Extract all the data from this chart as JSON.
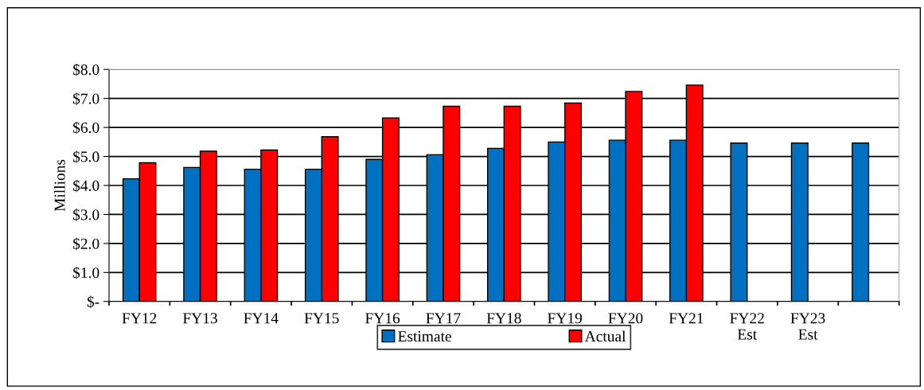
{
  "chart_data": {
    "type": "bar",
    "ylabel": "Millions",
    "categories": [
      "FY12",
      "FY13",
      "FY14",
      "FY15",
      "FY16",
      "FY17",
      "FY18",
      "FY19",
      "FY20",
      "FY21",
      "FY22\nEst",
      "FY23\nEst",
      null
    ],
    "series": [
      {
        "name": "Estimate",
        "color": "#0070c0",
        "values": [
          4.23,
          4.62,
          4.56,
          4.56,
          4.9,
          5.06,
          5.28,
          5.5,
          5.56,
          5.56,
          5.46,
          5.46,
          5.46
        ]
      },
      {
        "name": "Actual",
        "color": "#ff0000",
        "values": [
          4.78,
          5.18,
          5.22,
          5.68,
          6.33,
          6.73,
          6.73,
          6.84,
          7.24,
          7.46,
          null,
          null,
          null
        ]
      }
    ],
    "ylim": [
      0,
      8
    ],
    "yticks": [
      {
        "value": 0,
        "label": "$-"
      },
      {
        "value": 1,
        "label": "$1.0"
      },
      {
        "value": 2,
        "label": "$2.0"
      },
      {
        "value": 3,
        "label": "$3.0"
      },
      {
        "value": 4,
        "label": "$4.0"
      },
      {
        "value": 5,
        "label": "$5.0"
      },
      {
        "value": 6,
        "label": "$6.0"
      },
      {
        "value": 7,
        "label": "$7.0"
      },
      {
        "value": 8,
        "label": "$8.0"
      }
    ],
    "grid": "y",
    "legend": "bottom"
  }
}
